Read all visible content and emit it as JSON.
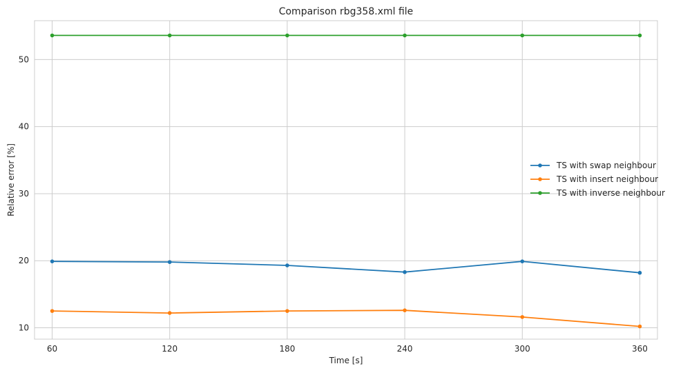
{
  "chart_data": {
    "type": "line",
    "title": "Comparison rbg358.xml file",
    "xlabel": "Time [s]",
    "ylabel": "Relative error [%]",
    "x": [
      60,
      120,
      180,
      240,
      300,
      360
    ],
    "xticks": [
      "60",
      "120",
      "180",
      "240",
      "300",
      "360"
    ],
    "yticks": [
      10,
      20,
      30,
      40,
      50
    ],
    "xlim": [
      51,
      369
    ],
    "ylim": [
      8.3,
      55.8
    ],
    "grid": true,
    "legend_position": "center-right",
    "series": [
      {
        "name": "TS with swap neighbour",
        "color": "#1f77b4",
        "values": [
          19.9,
          19.8,
          19.3,
          18.3,
          19.9,
          18.2
        ]
      },
      {
        "name": "TS with insert neighbour",
        "color": "#ff7f0e",
        "values": [
          12.5,
          12.2,
          12.5,
          12.6,
          11.6,
          10.2
        ]
      },
      {
        "name": "TS with inverse neighbour",
        "color": "#2ca02c",
        "values": [
          53.6,
          53.6,
          53.6,
          53.6,
          53.6,
          53.6
        ]
      }
    ]
  }
}
